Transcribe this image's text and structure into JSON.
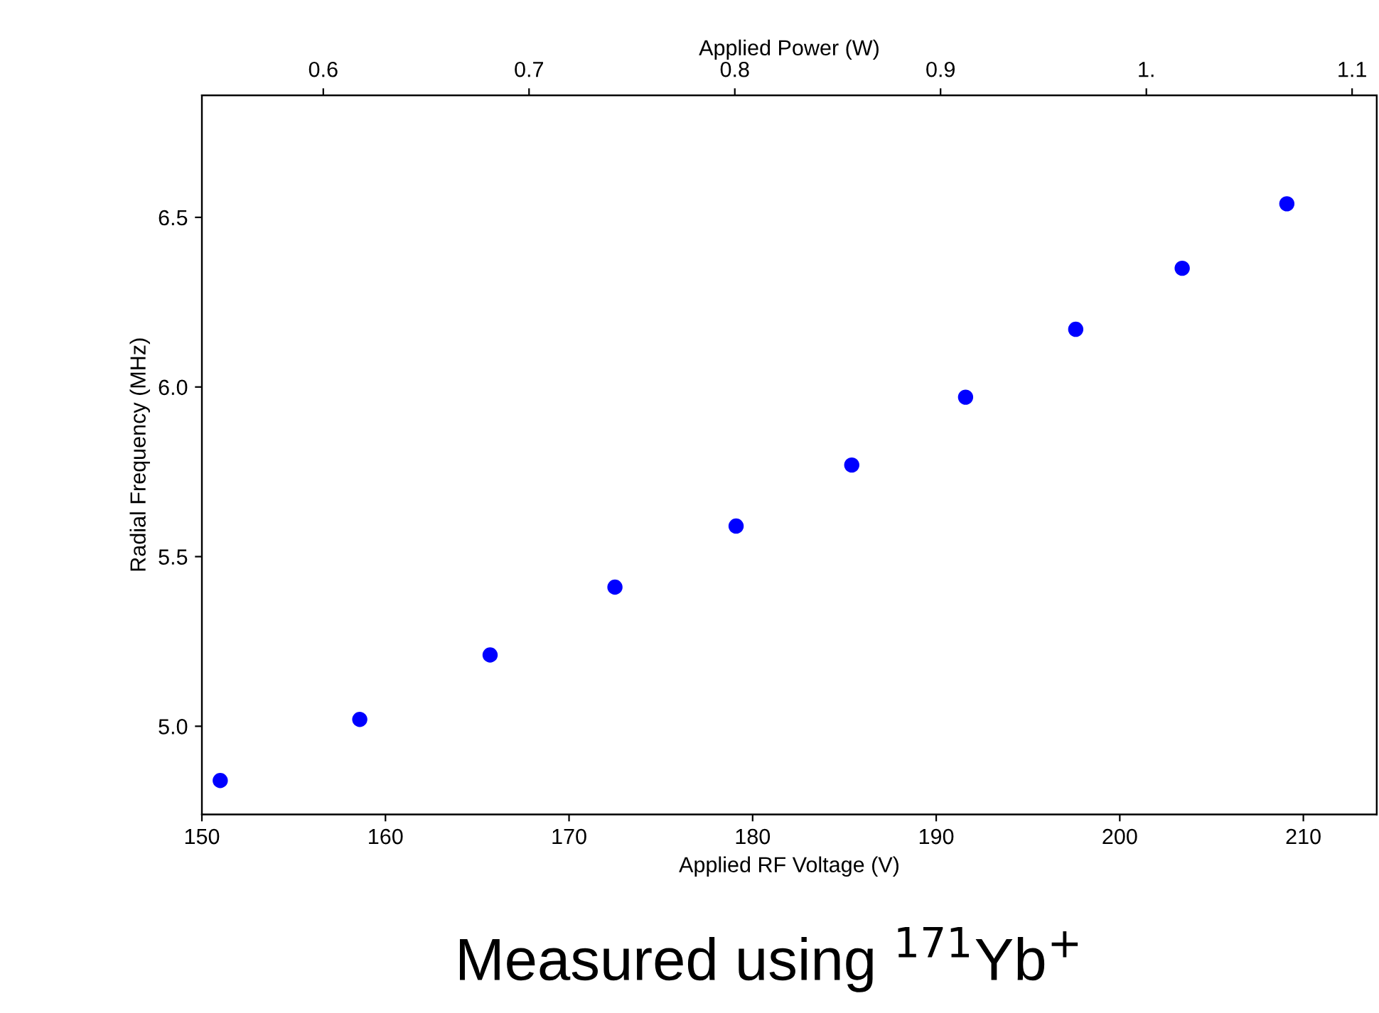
{
  "chart_data": {
    "type": "scatter",
    "xlabel": "Applied RF Voltage (V)",
    "ylabel": "Radial Frequency (MHz)",
    "x2label": "Applied Power (W)",
    "x": [
      151.0,
      158.6,
      165.7,
      172.5,
      179.1,
      185.4,
      191.6,
      197.6,
      203.4,
      209.1
    ],
    "series": [
      {
        "color": "#0000ff",
        "values": [
          4.84,
          5.02,
          5.21,
          5.41,
          5.59,
          5.77,
          5.97,
          6.17,
          6.35,
          6.54
        ]
      }
    ],
    "xlim": [
      150,
      214
    ],
    "xticks": [
      150,
      160,
      170,
      180,
      190,
      200,
      210
    ],
    "ylim": [
      4.74,
      6.86
    ],
    "yticks": [
      {
        "value": 5.0,
        "label": "5.0"
      },
      {
        "value": 5.5,
        "label": "5.5"
      },
      {
        "value": 6.0,
        "label": "6.0"
      },
      {
        "value": 6.5,
        "label": "6.5"
      }
    ],
    "x2lim": [
      0.541,
      1.112
    ],
    "x2ticks": [
      0.6,
      0.7,
      0.8,
      0.9,
      {
        "value": 1.0,
        "label": "1."
      },
      1.1
    ],
    "marker": "circle",
    "grid": false,
    "legend": false,
    "annotations": [
      "Measured using $^{171}$Yb$^{+}$"
    ]
  }
}
